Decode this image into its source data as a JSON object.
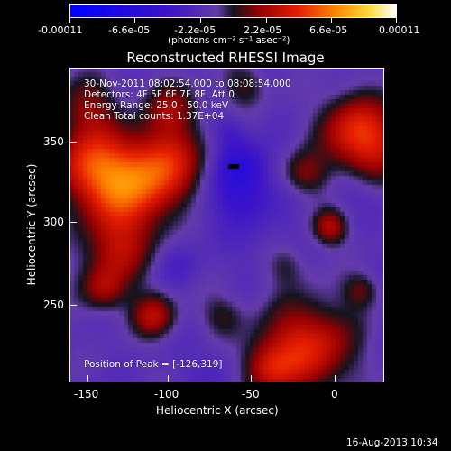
{
  "colorbar": {
    "ticks": [
      "-0.00011",
      "-6.6e-05",
      "-2.2e-05",
      "2.2e-05",
      "6.6e-05",
      "0.00011"
    ],
    "units": "(photons cm⁻² s⁻¹ asec⁻²)"
  },
  "title": "Reconstructed RHESSI Image",
  "annotations": {
    "time": "30-Nov-2011 08:02:54.000 to 08:08:54.000",
    "detectors": "Detectors: 4F 5F 6F 7F 8F, Att 0",
    "energy": "Energy Range: 25.0 - 50.0 keV",
    "clean": "Clean    Total counts: 1.37E+04",
    "peak": "Position of Peak = [-126,319]"
  },
  "axes": {
    "xlabel": "Heliocentric X (arcsec)",
    "ylabel": "Heliocentric Y (arcsec)",
    "xticks": [
      "-150",
      "-100",
      "-50",
      "0"
    ],
    "yticks": [
      "350",
      "300",
      "250"
    ]
  },
  "timestamp": "16-Aug-2013 10:34",
  "colors": {
    "background": "#000000",
    "axes": "#ffffff"
  }
}
